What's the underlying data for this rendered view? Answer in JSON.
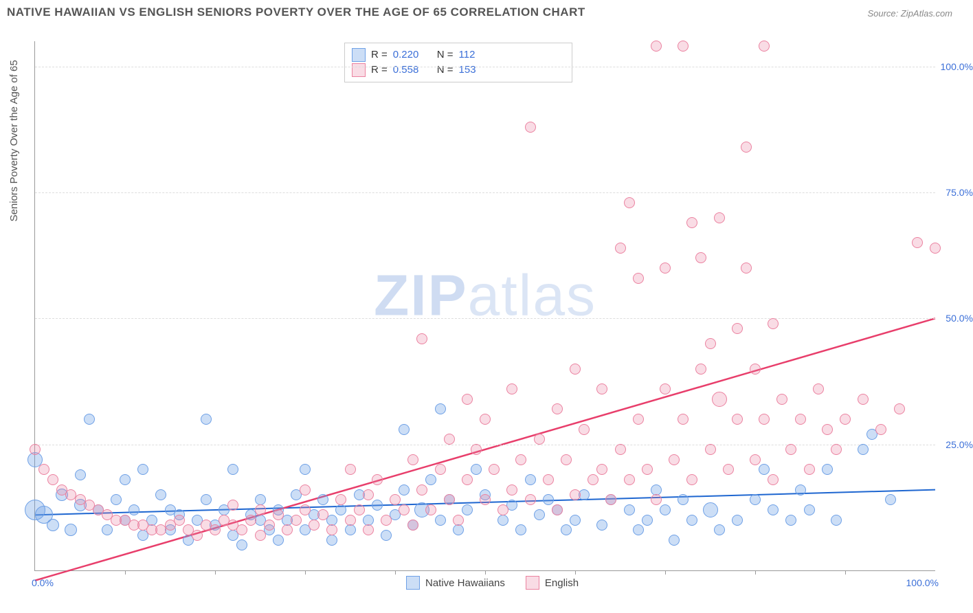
{
  "title": "NATIVE HAWAIIAN VS ENGLISH SENIORS POVERTY OVER THE AGE OF 65 CORRELATION CHART",
  "source": "Source: ZipAtlas.com",
  "ylabel": "Seniors Poverty Over the Age of 65",
  "watermark_bold": "ZIP",
  "watermark_light": "atlas",
  "chart": {
    "type": "scatter",
    "xlim": [
      0,
      100
    ],
    "ylim": [
      0,
      105
    ],
    "yticks": [
      {
        "v": 25,
        "label": "25.0%"
      },
      {
        "v": 50,
        "label": "50.0%"
      },
      {
        "v": 75,
        "label": "75.0%"
      },
      {
        "v": 100,
        "label": "100.0%"
      }
    ],
    "xtick_left": "0.0%",
    "xtick_right": "100.0%",
    "xminor_step": 10,
    "grid_color": "#dddddd",
    "background_color": "#ffffff",
    "axis_color": "#999999",
    "stats": [
      {
        "key": "blue",
        "R": "0.220",
        "N": "112"
      },
      {
        "key": "pink",
        "R": "0.558",
        "N": "153"
      }
    ],
    "stats_label_color": "#333333",
    "stats_value_color": "#3b6fd8",
    "series": [
      {
        "key": "blue",
        "label": "Native Hawaiians",
        "fill": "rgba(110,160,230,0.35)",
        "stroke": "#6ea0e6",
        "trend_color": "#1e66d0",
        "trend_width": 2,
        "trend": {
          "x1": 0,
          "y1": 11,
          "x2": 100,
          "y2": 16
        },
        "marker_r": 7,
        "points": [
          [
            0,
            12,
            14
          ],
          [
            0,
            22,
            10
          ],
          [
            1,
            11,
            12
          ],
          [
            2,
            9,
            8
          ],
          [
            3,
            15,
            8
          ],
          [
            4,
            8,
            8
          ],
          [
            5,
            13,
            8
          ],
          [
            5,
            19
          ],
          [
            6,
            30
          ],
          [
            7,
            12
          ],
          [
            8,
            8
          ],
          [
            9,
            14
          ],
          [
            10,
            10
          ],
          [
            10,
            18
          ],
          [
            11,
            12
          ],
          [
            12,
            7
          ],
          [
            12,
            20
          ],
          [
            13,
            10
          ],
          [
            14,
            15
          ],
          [
            15,
            8
          ],
          [
            15,
            12
          ],
          [
            16,
            11
          ],
          [
            17,
            6
          ],
          [
            18,
            10
          ],
          [
            19,
            14
          ],
          [
            19,
            30
          ],
          [
            20,
            9
          ],
          [
            21,
            12
          ],
          [
            22,
            7
          ],
          [
            22,
            20
          ],
          [
            23,
            5
          ],
          [
            24,
            11
          ],
          [
            25,
            10
          ],
          [
            25,
            14
          ],
          [
            26,
            8
          ],
          [
            27,
            12
          ],
          [
            27,
            6
          ],
          [
            28,
            10
          ],
          [
            29,
            15
          ],
          [
            30,
            8
          ],
          [
            30,
            20
          ],
          [
            31,
            11
          ],
          [
            32,
            14
          ],
          [
            33,
            6
          ],
          [
            33,
            10
          ],
          [
            34,
            12
          ],
          [
            35,
            8
          ],
          [
            36,
            15
          ],
          [
            37,
            10
          ],
          [
            38,
            13
          ],
          [
            39,
            7
          ],
          [
            40,
            11
          ],
          [
            41,
            16
          ],
          [
            41,
            28
          ],
          [
            42,
            9
          ],
          [
            43,
            12,
            10
          ],
          [
            44,
            18
          ],
          [
            45,
            32
          ],
          [
            45,
            10
          ],
          [
            46,
            14
          ],
          [
            47,
            8
          ],
          [
            48,
            12
          ],
          [
            49,
            20
          ],
          [
            50,
            15
          ],
          [
            52,
            10
          ],
          [
            53,
            13
          ],
          [
            54,
            8
          ],
          [
            55,
            18
          ],
          [
            56,
            11
          ],
          [
            57,
            14
          ],
          [
            58,
            12
          ],
          [
            59,
            8
          ],
          [
            60,
            10
          ],
          [
            61,
            15
          ],
          [
            63,
            9
          ],
          [
            64,
            14
          ],
          [
            66,
            12
          ],
          [
            67,
            8
          ],
          [
            68,
            10
          ],
          [
            69,
            16
          ],
          [
            70,
            12
          ],
          [
            71,
            6
          ],
          [
            72,
            14
          ],
          [
            73,
            10
          ],
          [
            75,
            12,
            10
          ],
          [
            76,
            8
          ],
          [
            78,
            10
          ],
          [
            80,
            14
          ],
          [
            81,
            20
          ],
          [
            82,
            12
          ],
          [
            84,
            10
          ],
          [
            85,
            16
          ],
          [
            86,
            12
          ],
          [
            88,
            20
          ],
          [
            89,
            10
          ],
          [
            92,
            24
          ],
          [
            93,
            27
          ],
          [
            95,
            14
          ]
        ]
      },
      {
        "key": "pink",
        "label": "English",
        "fill": "rgba(235,130,160,0.28)",
        "stroke": "#eb82a0",
        "trend_color": "#e83e6b",
        "trend_width": 2.5,
        "trend": {
          "x1": 0,
          "y1": -2,
          "x2": 100,
          "y2": 50
        },
        "marker_r": 7,
        "points": [
          [
            0,
            24
          ],
          [
            1,
            20
          ],
          [
            2,
            18
          ],
          [
            3,
            16
          ],
          [
            4,
            15
          ],
          [
            5,
            14
          ],
          [
            6,
            13
          ],
          [
            7,
            12
          ],
          [
            8,
            11
          ],
          [
            9,
            10
          ],
          [
            10,
            10
          ],
          [
            11,
            9
          ],
          [
            12,
            9
          ],
          [
            13,
            8
          ],
          [
            14,
            8
          ],
          [
            15,
            9
          ],
          [
            16,
            10
          ],
          [
            17,
            8
          ],
          [
            18,
            7
          ],
          [
            19,
            9
          ],
          [
            20,
            8
          ],
          [
            21,
            10
          ],
          [
            22,
            9
          ],
          [
            22,
            13
          ],
          [
            23,
            8
          ],
          [
            24,
            10
          ],
          [
            25,
            12
          ],
          [
            25,
            7
          ],
          [
            26,
            9
          ],
          [
            27,
            11
          ],
          [
            28,
            8
          ],
          [
            29,
            10
          ],
          [
            30,
            12
          ],
          [
            30,
            16
          ],
          [
            31,
            9
          ],
          [
            32,
            11
          ],
          [
            33,
            8
          ],
          [
            34,
            14
          ],
          [
            35,
            10
          ],
          [
            35,
            20
          ],
          [
            36,
            12
          ],
          [
            37,
            15
          ],
          [
            37,
            8
          ],
          [
            38,
            18
          ],
          [
            39,
            10
          ],
          [
            40,
            14
          ],
          [
            41,
            12
          ],
          [
            42,
            22
          ],
          [
            42,
            9
          ],
          [
            43,
            16
          ],
          [
            43,
            46
          ],
          [
            44,
            12
          ],
          [
            45,
            20
          ],
          [
            46,
            14
          ],
          [
            46,
            26
          ],
          [
            47,
            10
          ],
          [
            48,
            18
          ],
          [
            48,
            34
          ],
          [
            49,
            24
          ],
          [
            50,
            14
          ],
          [
            50,
            30
          ],
          [
            51,
            20
          ],
          [
            52,
            12
          ],
          [
            53,
            36
          ],
          [
            53,
            16
          ],
          [
            54,
            22
          ],
          [
            55,
            88
          ],
          [
            55,
            14
          ],
          [
            56,
            26
          ],
          [
            57,
            18
          ],
          [
            58,
            32
          ],
          [
            58,
            12
          ],
          [
            59,
            22
          ],
          [
            60,
            40
          ],
          [
            60,
            15
          ],
          [
            61,
            28
          ],
          [
            62,
            18
          ],
          [
            63,
            36
          ],
          [
            63,
            20
          ],
          [
            64,
            14
          ],
          [
            65,
            64
          ],
          [
            65,
            24
          ],
          [
            66,
            18
          ],
          [
            66,
            73
          ],
          [
            67,
            30
          ],
          [
            67,
            58
          ],
          [
            68,
            20
          ],
          [
            69,
            14
          ],
          [
            69,
            104
          ],
          [
            70,
            36
          ],
          [
            70,
            60
          ],
          [
            71,
            22
          ],
          [
            72,
            104
          ],
          [
            72,
            30
          ],
          [
            73,
            18
          ],
          [
            73,
            69
          ],
          [
            74,
            40
          ],
          [
            74,
            62
          ],
          [
            75,
            24
          ],
          [
            75,
            45
          ],
          [
            76,
            34,
            10
          ],
          [
            76,
            70
          ],
          [
            77,
            20
          ],
          [
            78,
            30
          ],
          [
            78,
            48
          ],
          [
            79,
            60
          ],
          [
            79,
            84
          ],
          [
            80,
            22
          ],
          [
            80,
            40
          ],
          [
            81,
            104
          ],
          [
            81,
            30
          ],
          [
            82,
            49
          ],
          [
            82,
            18
          ],
          [
            83,
            34
          ],
          [
            84,
            24
          ],
          [
            85,
            30
          ],
          [
            86,
            20
          ],
          [
            87,
            36
          ],
          [
            88,
            28
          ],
          [
            89,
            24
          ],
          [
            90,
            30
          ],
          [
            92,
            34
          ],
          [
            94,
            28
          ],
          [
            96,
            32
          ],
          [
            98,
            65
          ],
          [
            100,
            64
          ]
        ]
      }
    ],
    "legend_bottom": [
      {
        "label": "Native Hawaiians",
        "fill": "rgba(110,160,230,0.35)",
        "stroke": "#6ea0e6"
      },
      {
        "label": "English",
        "fill": "rgba(235,130,160,0.28)",
        "stroke": "#eb82a0"
      }
    ]
  }
}
